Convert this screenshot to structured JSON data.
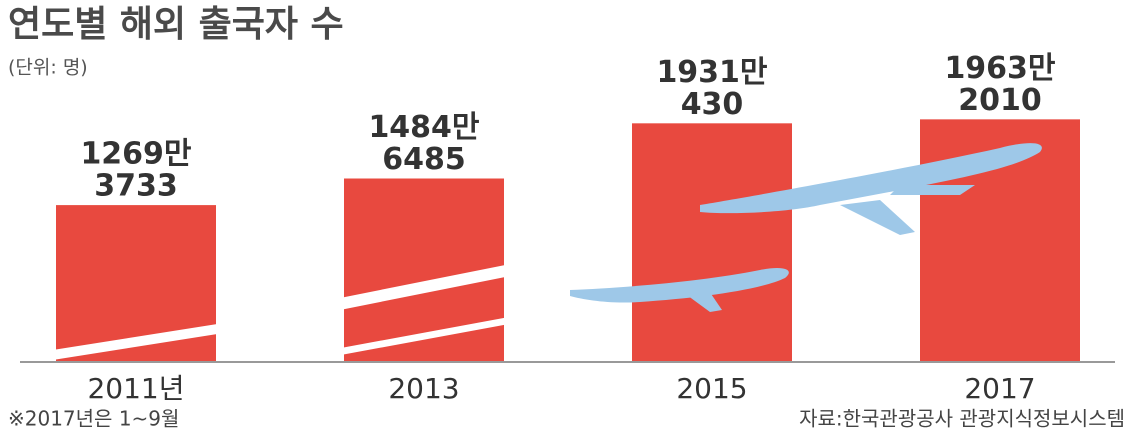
{
  "chart_data": {
    "type": "bar",
    "title": "연도별 해외 출국자 수",
    "subtitle": "(단위: 명)",
    "categories": [
      "2011년",
      "2013",
      "2015",
      "2017"
    ],
    "values": [
      12693733,
      14846485,
      19310430,
      19632010
    ],
    "value_labels": [
      [
        "1269만",
        "3733"
      ],
      [
        "1484만",
        "6485"
      ],
      [
        "1931만",
        "430"
      ],
      [
        "1963만",
        "2010"
      ]
    ],
    "color": "#e8493f",
    "ylim": [
      0,
      25000000
    ],
    "annotations": [
      "※2017년은 1~9월",
      "자료:한국관광공사 관광지식정보시스템"
    ]
  }
}
